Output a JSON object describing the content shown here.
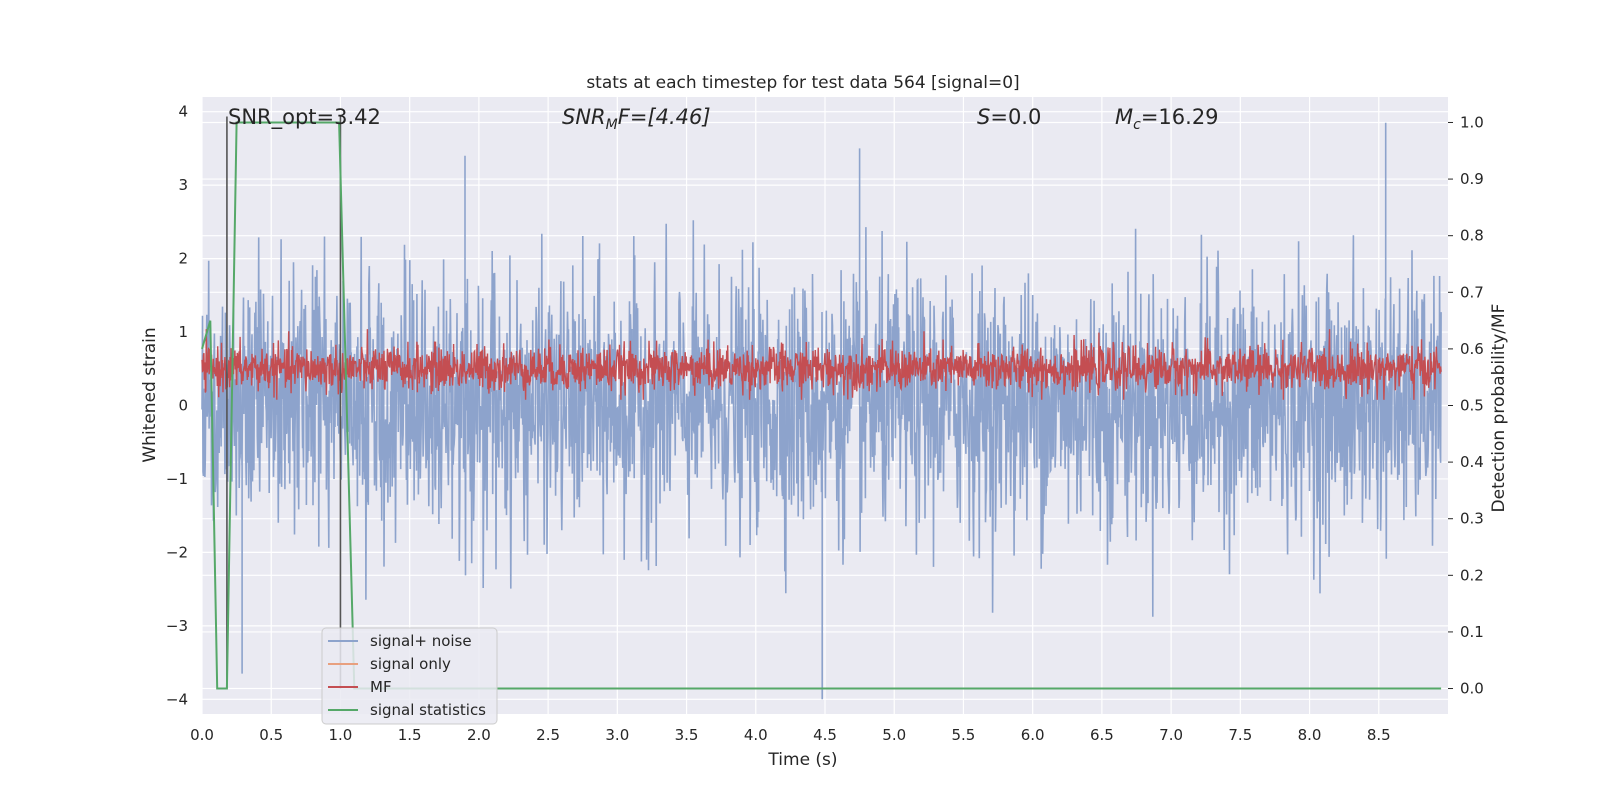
{
  "chart_data": {
    "type": "line",
    "title": "stats at each timestep for test data 564 [signal=0]",
    "xlabel": "Time (s)",
    "ylabel": "Whitened strain",
    "y2label": "Detection probability/MF",
    "xlim": [
      0,
      9
    ],
    "ylim": [
      -4.2,
      4.2
    ],
    "y2lim": [
      -0.045,
      1.045
    ],
    "xticks": [
      "0.0",
      "0.5",
      "1.0",
      "1.5",
      "2.0",
      "2.5",
      "3.0",
      "3.5",
      "4.0",
      "4.5",
      "5.0",
      "5.5",
      "6.0",
      "6.5",
      "7.0",
      "7.5",
      "8.0",
      "8.5"
    ],
    "yticks": [
      "4",
      "3",
      "2",
      "1",
      "0",
      "−1",
      "−2",
      "−3",
      "−4"
    ],
    "y2ticks": [
      "1.0",
      "0.9",
      "0.8",
      "0.7",
      "0.6",
      "0.5",
      "0.4",
      "0.3",
      "0.2",
      "0.1",
      "0.0"
    ],
    "grid": true,
    "legend_position": "lower-left",
    "annotations": {
      "snr_opt": "SNR_opt=3.42",
      "snr_mf_base": "SNR",
      "snr_mf_sub": "M",
      "snr_mf_rest": "F=[4.46]",
      "s_var": "S",
      "s_value": "=0.0",
      "mc_base": "M",
      "mc_sub": "c",
      "mc_value": "=16.29"
    },
    "vlines_x": [
      0.18,
      1.0
    ],
    "series": [
      {
        "name": "signal+ noise",
        "color": "#8da3cc",
        "axis": "left",
        "description": "whitened strain noise, roughly -2 to 2 with spikes to about +3.5 and -4.0",
        "peaks": [
          {
            "x": 0.29,
            "y": -3.65
          },
          {
            "x": 1.9,
            "y": 3.4
          },
          {
            "x": 4.48,
            "y": -4.0
          },
          {
            "x": 4.75,
            "y": 3.5
          },
          {
            "x": 8.55,
            "y": 3.85
          }
        ]
      },
      {
        "name": "signal only",
        "color": "#e8a07f",
        "axis": "left"
      },
      {
        "name": "MF",
        "color": "#c44e52",
        "axis": "right",
        "description": "matched-filter output fluctuating between about 0.52 and 0.62"
      },
      {
        "name": "signal statistics",
        "color": "#55a868",
        "axis": "right",
        "points": [
          {
            "x": 0.0,
            "y": 0.6
          },
          {
            "x": 0.06,
            "y": 0.65
          },
          {
            "x": 0.11,
            "y": 0.0
          },
          {
            "x": 0.18,
            "y": 0.0
          },
          {
            "x": 0.25,
            "y": 1.0
          },
          {
            "x": 0.99,
            "y": 1.0
          },
          {
            "x": 1.1,
            "y": 0.0
          },
          {
            "x": 8.95,
            "y": 0.0
          }
        ]
      }
    ]
  }
}
